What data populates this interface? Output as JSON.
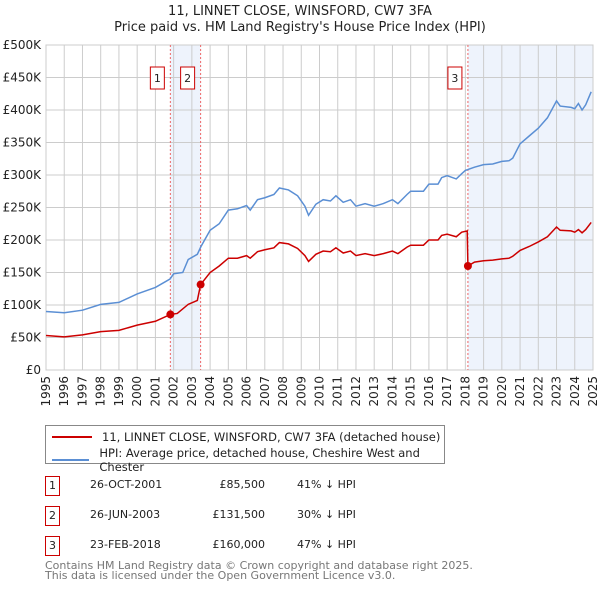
{
  "title": "11, LINNET CLOSE, WINSFORD, CW7 3FA",
  "subtitle": "Price paid vs. HM Land Registry's House Price Index (HPI)",
  "chart_data": {
    "type": "line",
    "xlim": [
      1995,
      2025
    ],
    "ylim": [
      0,
      500000
    ],
    "x_ticks": [
      "1995",
      "1996",
      "1997",
      "1998",
      "1999",
      "2000",
      "2001",
      "2002",
      "2003",
      "2004",
      "2005",
      "2006",
      "2007",
      "2008",
      "2009",
      "2010",
      "2011",
      "2012",
      "2013",
      "2014",
      "2015",
      "2016",
      "2017",
      "2018",
      "2019",
      "2020",
      "2021",
      "2022",
      "2023",
      "2024",
      "2025"
    ],
    "y_ticks": [
      {
        "v": 0,
        "l": "£0"
      },
      {
        "v": 50000,
        "l": "£50K"
      },
      {
        "v": 100000,
        "l": "£100K"
      },
      {
        "v": 150000,
        "l": "£150K"
      },
      {
        "v": 200000,
        "l": "£200K"
      },
      {
        "v": 250000,
        "l": "£250K"
      },
      {
        "v": 300000,
        "l": "£300K"
      },
      {
        "v": 350000,
        "l": "£350K"
      },
      {
        "v": 400000,
        "l": "£400K"
      },
      {
        "v": 450000,
        "l": "£450K"
      },
      {
        "v": 500000,
        "l": "£500K"
      }
    ],
    "grid": true,
    "series": [
      {
        "name": "11, LINNET CLOSE, WINSFORD, CW7 3FA (detached house)",
        "color": "#cc0000",
        "points": [
          [
            1995,
            53
          ],
          [
            1996,
            51
          ],
          [
            1997,
            54
          ],
          [
            1998,
            59
          ],
          [
            1999,
            61
          ],
          [
            2000,
            69
          ],
          [
            2001,
            75
          ],
          [
            2001.82,
            85.5
          ],
          [
            2002.2,
            87
          ],
          [
            2002.8,
            101
          ],
          [
            2003.3,
            107
          ],
          [
            2003.48,
            131.5
          ],
          [
            2004,
            150
          ],
          [
            2004.5,
            160
          ],
          [
            2005,
            172
          ],
          [
            2005.5,
            172
          ],
          [
            2006,
            176
          ],
          [
            2006.2,
            172
          ],
          [
            2006.6,
            182
          ],
          [
            2007,
            185
          ],
          [
            2007.5,
            188
          ],
          [
            2007.8,
            196
          ],
          [
            2008.3,
            194
          ],
          [
            2008.8,
            187
          ],
          [
            2009.2,
            176
          ],
          [
            2009.4,
            167
          ],
          [
            2009.8,
            178
          ],
          [
            2010.2,
            183
          ],
          [
            2010.6,
            182
          ],
          [
            2010.9,
            188
          ],
          [
            2011.3,
            180
          ],
          [
            2011.7,
            183
          ],
          [
            2012,
            176
          ],
          [
            2012.5,
            179
          ],
          [
            2013,
            176
          ],
          [
            2013.5,
            179
          ],
          [
            2014,
            183
          ],
          [
            2014.3,
            179
          ],
          [
            2014.8,
            189
          ],
          [
            2015,
            192
          ],
          [
            2015.7,
            192
          ],
          [
            2016,
            200
          ],
          [
            2016.5,
            200
          ],
          [
            2016.7,
            207
          ],
          [
            2017,
            209
          ],
          [
            2017.5,
            205
          ],
          [
            2017.8,
            212
          ],
          [
            2018.1,
            214
          ],
          [
            2018.14,
            160
          ],
          [
            2018.5,
            166
          ],
          [
            2019,
            168
          ],
          [
            2019.5,
            169
          ],
          [
            2020,
            171
          ],
          [
            2020.4,
            172
          ],
          [
            2020.6,
            175
          ],
          [
            2021,
            184
          ],
          [
            2021.5,
            190
          ],
          [
            2022,
            197
          ],
          [
            2022.5,
            205
          ],
          [
            2023,
            220
          ],
          [
            2023.2,
            215
          ],
          [
            2023.8,
            214
          ],
          [
            2024,
            212
          ],
          [
            2024.2,
            216
          ],
          [
            2024.4,
            211
          ],
          [
            2024.6,
            216
          ],
          [
            2024.9,
            227
          ]
        ]
      },
      {
        "name": "HPI: Average price, detached house, Cheshire West and Chester",
        "color": "#5b8fd4",
        "points": [
          [
            1995,
            90
          ],
          [
            1996,
            88
          ],
          [
            1997,
            92
          ],
          [
            1998,
            101
          ],
          [
            1999,
            104
          ],
          [
            2000,
            117
          ],
          [
            2001,
            127
          ],
          [
            2001.8,
            140
          ],
          [
            2002,
            148
          ],
          [
            2002.5,
            150
          ],
          [
            2002.8,
            170
          ],
          [
            2003.3,
            178
          ],
          [
            2003.5,
            190
          ],
          [
            2004,
            215
          ],
          [
            2004.5,
            225
          ],
          [
            2005,
            246
          ],
          [
            2005.5,
            248
          ],
          [
            2006,
            253
          ],
          [
            2006.2,
            246
          ],
          [
            2006.6,
            262
          ],
          [
            2007,
            265
          ],
          [
            2007.5,
            270
          ],
          [
            2007.8,
            280
          ],
          [
            2008.3,
            277
          ],
          [
            2008.8,
            268
          ],
          [
            2009.2,
            252
          ],
          [
            2009.4,
            238
          ],
          [
            2009.8,
            255
          ],
          [
            2010.2,
            262
          ],
          [
            2010.6,
            260
          ],
          [
            2010.9,
            268
          ],
          [
            2011.3,
            258
          ],
          [
            2011.7,
            262
          ],
          [
            2012,
            252
          ],
          [
            2012.5,
            256
          ],
          [
            2013,
            252
          ],
          [
            2013.5,
            256
          ],
          [
            2014,
            262
          ],
          [
            2014.3,
            256
          ],
          [
            2014.8,
            270
          ],
          [
            2015,
            275
          ],
          [
            2015.7,
            275
          ],
          [
            2016,
            286
          ],
          [
            2016.5,
            286
          ],
          [
            2016.7,
            296
          ],
          [
            2017,
            299
          ],
          [
            2017.5,
            294
          ],
          [
            2017.8,
            302
          ],
          [
            2018,
            307
          ],
          [
            2018.5,
            312
          ],
          [
            2019,
            316
          ],
          [
            2019.5,
            317
          ],
          [
            2020,
            321
          ],
          [
            2020.4,
            322
          ],
          [
            2020.6,
            326
          ],
          [
            2021,
            348
          ],
          [
            2021.5,
            360
          ],
          [
            2022,
            372
          ],
          [
            2022.5,
            388
          ],
          [
            2023,
            414
          ],
          [
            2023.2,
            406
          ],
          [
            2023.8,
            404
          ],
          [
            2024,
            402
          ],
          [
            2024.2,
            410
          ],
          [
            2024.4,
            400
          ],
          [
            2024.6,
            408
          ],
          [
            2024.9,
            428
          ]
        ]
      }
    ],
    "y_units": "thousands GBP",
    "sales": [
      {
        "n": "1",
        "x": 2001.82,
        "y": 85.5
      },
      {
        "n": "2",
        "x": 2003.48,
        "y": 131.5
      },
      {
        "n": "3",
        "x": 2018.14,
        "y": 160
      }
    ],
    "shaded": [
      [
        2001.82,
        2003.48
      ],
      [
        2018.14,
        2025
      ]
    ],
    "legend": "below"
  },
  "legend": [
    "11, LINNET CLOSE, WINSFORD, CW7 3FA (detached house)",
    "HPI: Average price, detached house, Cheshire West and Chester"
  ],
  "sales": [
    {
      "n": "1",
      "date": "26-OCT-2001",
      "price": "£85,500",
      "hpi": "41% ↓ HPI"
    },
    {
      "n": "2",
      "date": "26-JUN-2003",
      "price": "£131,500",
      "hpi": "30% ↓ HPI"
    },
    {
      "n": "3",
      "date": "23-FEB-2018",
      "price": "£160,000",
      "hpi": "47% ↓ HPI"
    }
  ],
  "footer": [
    "Contains HM Land Registry data © Crown copyright and database right 2025.",
    "This data is licensed under the Open Government Licence v3.0."
  ]
}
